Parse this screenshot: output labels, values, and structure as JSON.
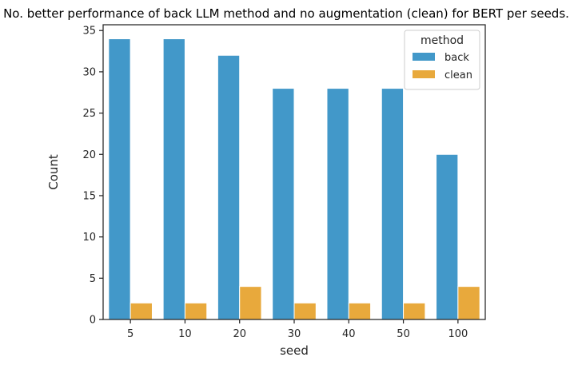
{
  "chart_data": {
    "type": "bar",
    "title": "No. better performance of back LLM method and no augmentation (clean) for BERT per seeds.",
    "xlabel": "seed",
    "ylabel": "Count",
    "categories": [
      "5",
      "10",
      "20",
      "30",
      "40",
      "50",
      "100"
    ],
    "series": [
      {
        "name": "back",
        "color": "#4298c9",
        "values": [
          34,
          34,
          32,
          28,
          28,
          28,
          20
        ]
      },
      {
        "name": "clean",
        "color": "#e8a93c",
        "values": [
          2,
          2,
          4,
          2,
          2,
          2,
          4
        ]
      }
    ],
    "yticks": [
      0,
      5,
      10,
      15,
      20,
      25,
      30,
      35
    ],
    "ylim": [
      0,
      35.7
    ],
    "legend": {
      "title": "method",
      "placement": "top-right"
    },
    "grid": false
  }
}
